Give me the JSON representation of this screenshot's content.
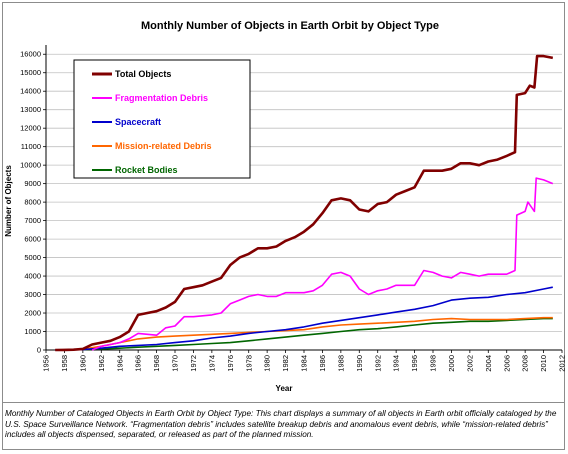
{
  "chart_data": {
    "type": "line",
    "title": "Monthly Number of Objects in Earth Orbit by Object Type",
    "xlabel": "Year",
    "ylabel": "Number of Objects",
    "xlim": [
      1956,
      2012
    ],
    "ylim": [
      0,
      16500
    ],
    "x_ticks": [
      1956,
      1958,
      1960,
      1962,
      1964,
      1966,
      1968,
      1970,
      1972,
      1974,
      1976,
      1978,
      1980,
      1982,
      1984,
      1986,
      1988,
      1990,
      1992,
      1994,
      1996,
      1998,
      2000,
      2002,
      2004,
      2006,
      2008,
      2010,
      2012
    ],
    "y_ticks": [
      0,
      1000,
      2000,
      3000,
      4000,
      5000,
      6000,
      7000,
      8000,
      9000,
      10000,
      11000,
      12000,
      13000,
      14000,
      15000,
      16000
    ],
    "grid": true,
    "legend_position": "top-left",
    "series": [
      {
        "name": "Total Objects",
        "color": "#800000",
        "points": [
          [
            1957,
            0
          ],
          [
            1958,
            5
          ],
          [
            1959,
            15
          ],
          [
            1960,
            60
          ],
          [
            1961,
            300
          ],
          [
            1962,
            400
          ],
          [
            1963,
            500
          ],
          [
            1964,
            700
          ],
          [
            1965,
            1000
          ],
          [
            1966,
            1900
          ],
          [
            1967,
            2000
          ],
          [
            1968,
            2100
          ],
          [
            1969,
            2300
          ],
          [
            1970,
            2600
          ],
          [
            1971,
            3300
          ],
          [
            1972,
            3400
          ],
          [
            1973,
            3500
          ],
          [
            1974,
            3700
          ],
          [
            1975,
            3900
          ],
          [
            1976,
            4600
          ],
          [
            1977,
            5000
          ],
          [
            1978,
            5200
          ],
          [
            1979,
            5500
          ],
          [
            1980,
            5500
          ],
          [
            1981,
            5600
          ],
          [
            1982,
            5900
          ],
          [
            1983,
            6100
          ],
          [
            1984,
            6400
          ],
          [
            1985,
            6800
          ],
          [
            1986,
            7400
          ],
          [
            1987,
            8100
          ],
          [
            1988,
            8200
          ],
          [
            1989,
            8100
          ],
          [
            1990,
            7600
          ],
          [
            1991,
            7500
          ],
          [
            1992,
            7900
          ],
          [
            1993,
            8000
          ],
          [
            1994,
            8400
          ],
          [
            1995,
            8600
          ],
          [
            1996,
            8800
          ],
          [
            1997,
            9700
          ],
          [
            1998,
            9700
          ],
          [
            1999,
            9700
          ],
          [
            2000,
            9800
          ],
          [
            2001,
            10100
          ],
          [
            2002,
            10100
          ],
          [
            2003,
            10000
          ],
          [
            2004,
            10200
          ],
          [
            2005,
            10300
          ],
          [
            2006,
            10500
          ],
          [
            2006.9,
            10700
          ],
          [
            2007.1,
            13800
          ],
          [
            2008,
            13900
          ],
          [
            2008.5,
            14300
          ],
          [
            2009,
            14200
          ],
          [
            2009.3,
            15900
          ],
          [
            2010,
            15900
          ],
          [
            2011,
            15800
          ]
        ]
      },
      {
        "name": "Fragmentation Debris",
        "color": "#ff00ff",
        "points": [
          [
            1961,
            0
          ],
          [
            1962,
            200
          ],
          [
            1963,
            300
          ],
          [
            1964,
            400
          ],
          [
            1965,
            600
          ],
          [
            1966,
            900
          ],
          [
            1967,
            850
          ],
          [
            1968,
            800
          ],
          [
            1969,
            1200
          ],
          [
            1970,
            1300
          ],
          [
            1971,
            1800
          ],
          [
            1972,
            1800
          ],
          [
            1973,
            1850
          ],
          [
            1974,
            1900
          ],
          [
            1975,
            2000
          ],
          [
            1976,
            2500
          ],
          [
            1977,
            2700
          ],
          [
            1978,
            2900
          ],
          [
            1979,
            3000
          ],
          [
            1980,
            2900
          ],
          [
            1981,
            2900
          ],
          [
            1982,
            3100
          ],
          [
            1983,
            3100
          ],
          [
            1984,
            3100
          ],
          [
            1985,
            3200
          ],
          [
            1986,
            3500
          ],
          [
            1987,
            4100
          ],
          [
            1988,
            4200
          ],
          [
            1989,
            4000
          ],
          [
            1990,
            3300
          ],
          [
            1991,
            3000
          ],
          [
            1992,
            3200
          ],
          [
            1993,
            3300
          ],
          [
            1994,
            3500
          ],
          [
            1995,
            3500
          ],
          [
            1996,
            3500
          ],
          [
            1997,
            4300
          ],
          [
            1998,
            4200
          ],
          [
            1999,
            4000
          ],
          [
            2000,
            3900
          ],
          [
            2001,
            4200
          ],
          [
            2002,
            4100
          ],
          [
            2003,
            4000
          ],
          [
            2004,
            4100
          ],
          [
            2005,
            4100
          ],
          [
            2006,
            4100
          ],
          [
            2006.9,
            4300
          ],
          [
            2007.1,
            7300
          ],
          [
            2008,
            7500
          ],
          [
            2008.3,
            8000
          ],
          [
            2009,
            7500
          ],
          [
            2009.2,
            9300
          ],
          [
            2010,
            9200
          ],
          [
            2011,
            9000
          ]
        ]
      },
      {
        "name": "Spacecraft",
        "color": "#0000cc",
        "points": [
          [
            1957,
            0
          ],
          [
            1960,
            20
          ],
          [
            1962,
            100
          ],
          [
            1964,
            200
          ],
          [
            1966,
            250
          ],
          [
            1968,
            300
          ],
          [
            1970,
            400
          ],
          [
            1972,
            500
          ],
          [
            1974,
            650
          ],
          [
            1976,
            750
          ],
          [
            1978,
            900
          ],
          [
            1980,
            1000
          ],
          [
            1982,
            1100
          ],
          [
            1984,
            1250
          ],
          [
            1986,
            1450
          ],
          [
            1988,
            1600
          ],
          [
            1990,
            1750
          ],
          [
            1992,
            1900
          ],
          [
            1994,
            2050
          ],
          [
            1996,
            2200
          ],
          [
            1998,
            2400
          ],
          [
            2000,
            2700
          ],
          [
            2002,
            2800
          ],
          [
            2004,
            2850
          ],
          [
            2006,
            3000
          ],
          [
            2008,
            3100
          ],
          [
            2010,
            3300
          ],
          [
            2011,
            3400
          ]
        ]
      },
      {
        "name": "Mission-related Debris",
        "color": "#ff6600",
        "points": [
          [
            1957,
            0
          ],
          [
            1960,
            50
          ],
          [
            1962,
            200
          ],
          [
            1964,
            400
          ],
          [
            1966,
            600
          ],
          [
            1968,
            700
          ],
          [
            1970,
            750
          ],
          [
            1972,
            800
          ],
          [
            1974,
            850
          ],
          [
            1976,
            900
          ],
          [
            1978,
            950
          ],
          [
            1980,
            1000
          ],
          [
            1982,
            1050
          ],
          [
            1984,
            1100
          ],
          [
            1986,
            1250
          ],
          [
            1988,
            1350
          ],
          [
            1990,
            1400
          ],
          [
            1992,
            1450
          ],
          [
            1994,
            1500
          ],
          [
            1996,
            1550
          ],
          [
            1998,
            1650
          ],
          [
            2000,
            1700
          ],
          [
            2002,
            1650
          ],
          [
            2004,
            1650
          ],
          [
            2006,
            1650
          ],
          [
            2008,
            1700
          ],
          [
            2010,
            1750
          ],
          [
            2011,
            1750
          ]
        ]
      },
      {
        "name": "Rocket Bodies",
        "color": "#006600",
        "points": [
          [
            1957,
            0
          ],
          [
            1960,
            20
          ],
          [
            1962,
            60
          ],
          [
            1964,
            100
          ],
          [
            1966,
            150
          ],
          [
            1968,
            200
          ],
          [
            1970,
            250
          ],
          [
            1972,
            300
          ],
          [
            1974,
            350
          ],
          [
            1976,
            400
          ],
          [
            1978,
            500
          ],
          [
            1980,
            600
          ],
          [
            1982,
            700
          ],
          [
            1984,
            800
          ],
          [
            1986,
            900
          ],
          [
            1988,
            1000
          ],
          [
            1990,
            1100
          ],
          [
            1992,
            1150
          ],
          [
            1994,
            1250
          ],
          [
            1996,
            1350
          ],
          [
            1998,
            1450
          ],
          [
            2000,
            1500
          ],
          [
            2002,
            1550
          ],
          [
            2004,
            1550
          ],
          [
            2006,
            1600
          ],
          [
            2008,
            1650
          ],
          [
            2010,
            1700
          ],
          [
            2011,
            1700
          ]
        ]
      }
    ]
  },
  "caption": {
    "title_part": "Monthly Number of Cataloged Objects in Earth Orbit by Object Type:",
    "body": " This chart displays a summary of all objects in Earth orbit officially cataloged by the U.S. Space Surveillance Network. “Fragmentation debris” includes satellite breakup debris and anomalous event debris, while “mission-related debris” includes all objects dispensed, separated, or released as part of the planned mission."
  }
}
